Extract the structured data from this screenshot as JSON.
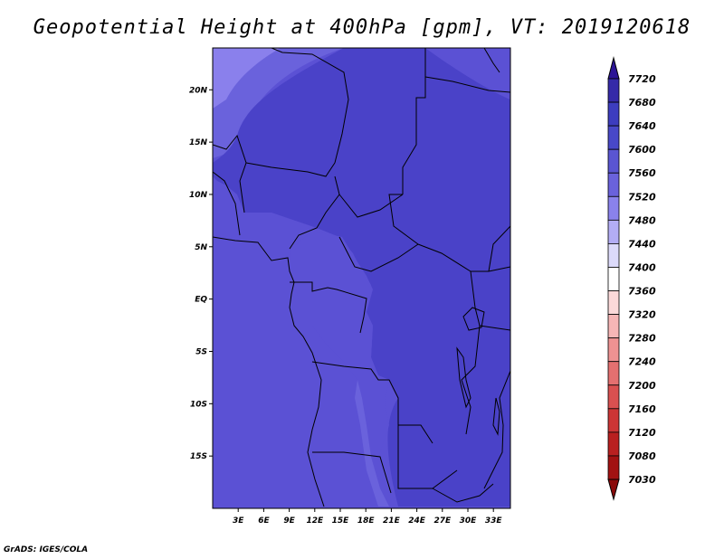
{
  "title": "Geopotential Height at 400hPa [gpm], VT: 2019120618",
  "footer": "GrADS: IGES/COLA",
  "map": {
    "lat_labels": [
      "20N",
      "15N",
      "10N",
      "5N",
      "EQ",
      "5S",
      "10S",
      "15S"
    ],
    "lon_labels": [
      "3E",
      "6E",
      "9E",
      "12E",
      "15E",
      "18E",
      "21E",
      "24E",
      "27E",
      "30E",
      "33E"
    ],
    "lat_range": [
      -20,
      24
    ],
    "lon_range": [
      0,
      35
    ]
  },
  "colorbar": {
    "labels": [
      "7720",
      "7680",
      "7640",
      "7600",
      "7560",
      "7520",
      "7480",
      "7440",
      "7400",
      "7360",
      "7320",
      "7280",
      "7240",
      "7200",
      "7160",
      "7120",
      "7080",
      "7030"
    ],
    "colors": [
      "#2c1596",
      "#352aa8",
      "#3d3dbf",
      "#4848c8",
      "#5a55d2",
      "#6a62dc",
      "#8a82ec",
      "#b3adf5",
      "#dcdafa",
      "#ffffff",
      "#fbd9d9",
      "#f6b6b6",
      "#ee9292",
      "#e47070",
      "#d95050",
      "#cc3535",
      "#b92020",
      "#a21212",
      "#8a0a0a"
    ]
  },
  "field_colors": {
    "c7560": "#5b51d4",
    "c7520": "#6a62dc",
    "c7480": "#8a80ec",
    "c7600": "#4a42c8"
  }
}
